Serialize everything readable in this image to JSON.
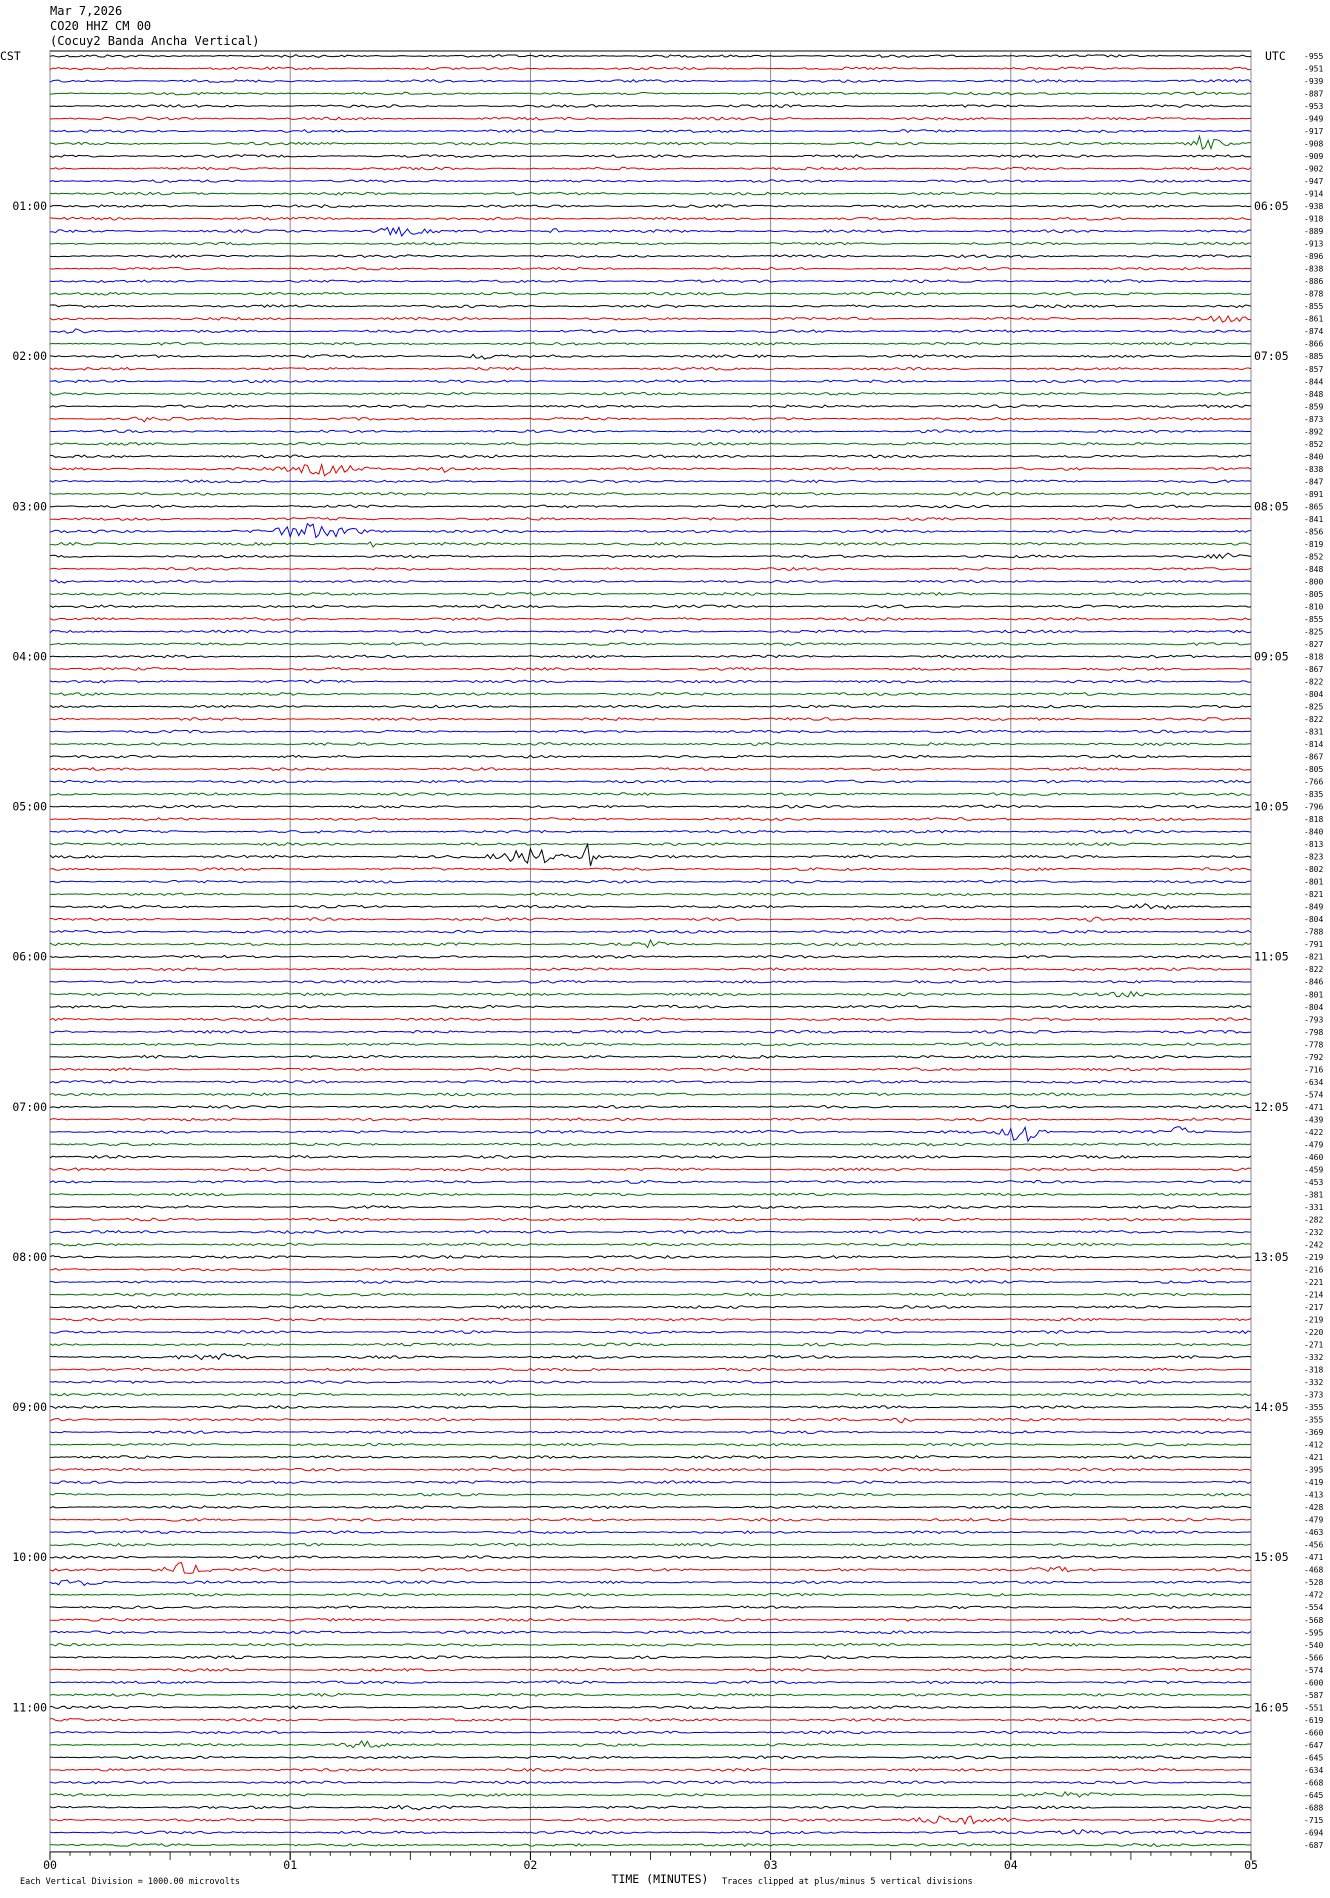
{
  "chart_data": {
    "type": "helicorder",
    "title": "Mar 7,2026",
    "subtitle": "CO20 HHZ CM 00",
    "station": "(Cocuy2 Banda Ancha Vertical)",
    "left_axis_label": "CST",
    "right_axis_label": "UTC",
    "left_hour_labels": [
      "01:00",
      "02:00",
      "03:00",
      "04:00",
      "05:00",
      "06:00",
      "07:00",
      "08:00",
      "09:00",
      "10:00",
      "11:00"
    ],
    "right_hour_labels": [
      "06:05",
      "07:05",
      "08:05",
      "09:05",
      "10:05",
      "11:05",
      "12:05",
      "13:05",
      "14:05",
      "15:05",
      "16:05"
    ],
    "row_offsets": [
      -955,
      -951,
      -939,
      -887,
      -953,
      -949,
      -917,
      -908,
      -909,
      -902,
      -947,
      -914,
      -938,
      -918,
      -889,
      -913,
      -896,
      -838,
      -886,
      -878,
      -855,
      -861,
      -874,
      -866,
      -885,
      -857,
      -844,
      -848,
      -859,
      -873,
      -892,
      -852,
      -840,
      -838,
      -847,
      -891,
      -865,
      -841,
      -856,
      -819,
      -852,
      -848,
      -800,
      -805,
      -810,
      -855,
      -825,
      -827,
      -818,
      -867,
      -822,
      -804,
      -825,
      -822,
      -831,
      -814,
      -867,
      -805,
      -766,
      -835,
      -796,
      -818,
      -840,
      -813,
      -823,
      -802,
      -801,
      -821,
      -849,
      -804,
      -788,
      -791,
      -821,
      -822,
      -846,
      -801,
      -804,
      -793,
      -798,
      -778,
      -792,
      -716,
      -634,
      -574,
      -471,
      -439,
      -422,
      -479,
      -460,
      -459,
      -453,
      -381,
      -331,
      -282,
      -232,
      -242,
      -219,
      -216,
      -221,
      -214,
      -217,
      -219,
      -220,
      -271,
      -332,
      -318,
      -332,
      -373,
      -355,
      -355,
      -369,
      -412,
      -421,
      -395,
      -419,
      -413,
      -428,
      -479,
      -463,
      -456,
      -471,
      -468,
      -528,
      -472,
      -554,
      -568,
      -595,
      -540,
      -566,
      -574,
      -600,
      -587,
      -551,
      -619,
      -660,
      -647,
      -645,
      -634,
      -668,
      -645,
      -688,
      -715,
      -694,
      -687
    ],
    "colors": [
      "#000000",
      "#e00000",
      "#0000e0",
      "#007000"
    ],
    "xlabel": "TIME (MINUTES)",
    "xlim": [
      0,
      5
    ],
    "xticks": [
      {
        "value": 0,
        "label": "00"
      },
      {
        "value": 1,
        "label": "01"
      },
      {
        "value": 2,
        "label": "02"
      },
      {
        "value": 3,
        "label": "03"
      },
      {
        "value": 4,
        "label": "04"
      },
      {
        "value": 5,
        "label": "05"
      }
    ],
    "footnote_left": "Each Vertical Division = 1000.00 microvolts",
    "footnote_right": "Traces clipped at plus/minus 5 vertical divisions"
  }
}
